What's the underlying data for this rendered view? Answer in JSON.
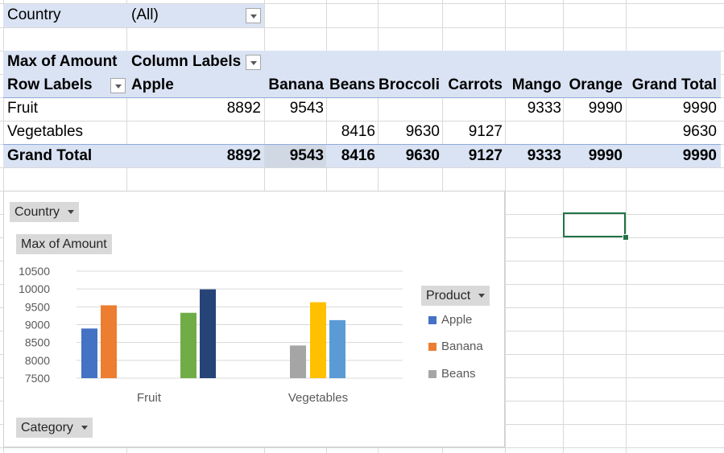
{
  "filter": {
    "label": "Country",
    "value": "(All)"
  },
  "pivot": {
    "value_header": "Max of Amount",
    "column_labels": "Column Labels",
    "row_labels": "Row Labels",
    "columns": [
      "Apple",
      "Banana",
      "Beans",
      "Broccoli",
      "Carrots",
      "Mango",
      "Orange",
      "Grand Total"
    ],
    "rows": [
      {
        "label": "Fruit",
        "values": [
          "8892",
          "9543",
          "",
          "",
          "",
          "9333",
          "9990",
          "9990"
        ]
      },
      {
        "label": "Vegetables",
        "values": [
          "",
          "",
          "8416",
          "9630",
          "9127",
          "",
          "",
          "9630"
        ]
      }
    ],
    "grand_total": {
      "label": "Grand Total",
      "values": [
        "8892",
        "9543",
        "8416",
        "9630",
        "9127",
        "9333",
        "9990",
        "9990"
      ]
    }
  },
  "chart_ui": {
    "filter_button": "Country",
    "value_button": "Max of Amount",
    "axis_button": "Category",
    "legend_button": "Product",
    "legend_items": [
      {
        "label": "Apple",
        "color": "#4472c4"
      },
      {
        "label": "Banana",
        "color": "#ed7d31"
      },
      {
        "label": "Beans",
        "color": "#a5a5a5"
      }
    ]
  },
  "chart_data": {
    "type": "bar",
    "categories": [
      "Fruit",
      "Vegetables"
    ],
    "ylim": [
      7500,
      10500
    ],
    "yticks": [
      "10500",
      "10000",
      "9500",
      "9000",
      "8500",
      "8000",
      "7500"
    ],
    "series": [
      {
        "name": "Apple",
        "color": "#4472c4",
        "values": [
          8892,
          null
        ]
      },
      {
        "name": "Banana",
        "color": "#ed7d31",
        "values": [
          9543,
          null
        ]
      },
      {
        "name": "Beans",
        "color": "#a5a5a5",
        "values": [
          null,
          8416
        ]
      },
      {
        "name": "Broccoli",
        "color": "#ffc000",
        "values": [
          null,
          9630
        ]
      },
      {
        "name": "Carrots",
        "color": "#5b9bd5",
        "values": [
          null,
          9127
        ]
      },
      {
        "name": "Mango",
        "color": "#70ad47",
        "values": [
          9333,
          null
        ]
      },
      {
        "name": "Orange",
        "color": "#264478",
        "values": [
          9990,
          null
        ]
      }
    ]
  }
}
